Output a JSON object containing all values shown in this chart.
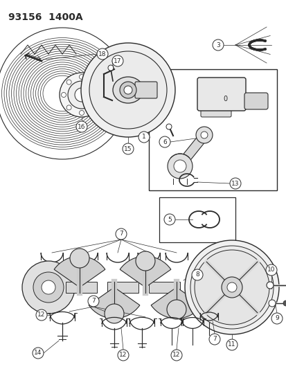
{
  "title": "93156  1400A",
  "bg_color": "#ffffff",
  "line_color": "#2a2a2a",
  "figsize": [
    4.14,
    5.33
  ],
  "dpi": 100
}
